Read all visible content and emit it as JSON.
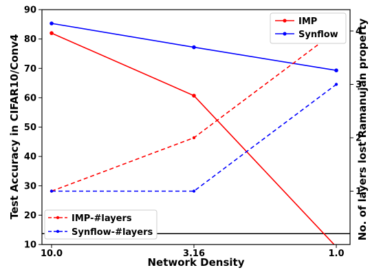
{
  "chart_data": {
    "type": "line",
    "xlabel": "Network Density",
    "ylabel": "Test Accuracy in CIFAR10/Conv4",
    "y2label": "No. of layers lost Ramanujan property",
    "categories": [
      "10.0",
      "3.16",
      "1.0"
    ],
    "ylim": [
      10,
      90
    ],
    "yticks": [
      "10",
      "20",
      "30",
      "40",
      "50",
      "60",
      "70",
      "80",
      "90"
    ],
    "y2lim": [
      0,
      4.4
    ],
    "y2ticks": [
      "1",
      "2",
      "3",
      "4"
    ],
    "series": [
      {
        "name": "IMP",
        "axis": "left",
        "style": "solid",
        "color": "#ff0000",
        "values": [
          82,
          60.7,
          9.2
        ]
      },
      {
        "name": "Synflow",
        "axis": "left",
        "style": "solid",
        "color": "#0000ff",
        "values": [
          85.3,
          77.2,
          69.3
        ]
      },
      {
        "name": "IMP-#layers",
        "axis": "right",
        "style": "dashed",
        "color": "#ff0000",
        "values": [
          1,
          2,
          4
        ]
      },
      {
        "name": "Synflow-#layers",
        "axis": "right",
        "style": "dashed",
        "color": "#0000ff",
        "values": [
          1,
          1,
          3
        ]
      }
    ],
    "reference_line": {
      "axis": "left",
      "value": 13.7,
      "color": "#000000"
    },
    "legends": [
      "top-right",
      "bottom-left"
    ],
    "grid": false
  }
}
